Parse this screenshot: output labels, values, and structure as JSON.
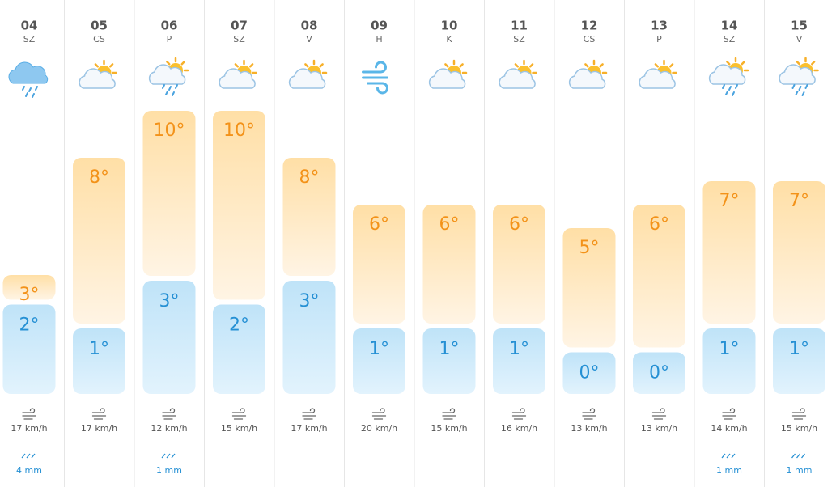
{
  "days": [
    {
      "day": "04",
      "weekday": "SZ",
      "max": "3°",
      "min": "2°",
      "wind": "17 km/h",
      "rain": "4 mm"
    },
    {
      "day": "05",
      "weekday": "CS",
      "max": "8°",
      "min": "1°",
      "wind": "17 km/h"
    },
    {
      "day": "06",
      "weekday": "P",
      "max": "10°",
      "min": "3°",
      "wind": "12 km/h",
      "rain": "1 mm"
    },
    {
      "day": "07",
      "weekday": "SZ",
      "max": "10°",
      "min": "2°",
      "wind": "15 km/h"
    },
    {
      "day": "08",
      "weekday": "V",
      "max": "8°",
      "min": "3°",
      "wind": "17 km/h"
    },
    {
      "day": "09",
      "weekday": "H",
      "max": "6°",
      "min": "1°",
      "wind": "20 km/h"
    },
    {
      "day": "10",
      "weekday": "K",
      "max": "6°",
      "min": "1°",
      "wind": "15 km/h"
    },
    {
      "day": "11",
      "weekday": "SZ",
      "max": "6°",
      "min": "1°",
      "wind": "16 km/h"
    },
    {
      "day": "12",
      "weekday": "CS",
      "max": "5°",
      "min": "0°",
      "wind": "13 km/h"
    },
    {
      "day": "13",
      "weekday": "P",
      "max": "6°",
      "min": "0°",
      "wind": "13 km/h"
    },
    {
      "day": "14",
      "weekday": "SZ",
      "max": "7°",
      "min": "1°",
      "wind": "14 km/h",
      "rain": "1 mm"
    },
    {
      "day": "15",
      "weekday": "V",
      "max": "7°",
      "min": "1°",
      "wind": "15 km/h",
      "rain": "1 mm"
    }
  ]
}
